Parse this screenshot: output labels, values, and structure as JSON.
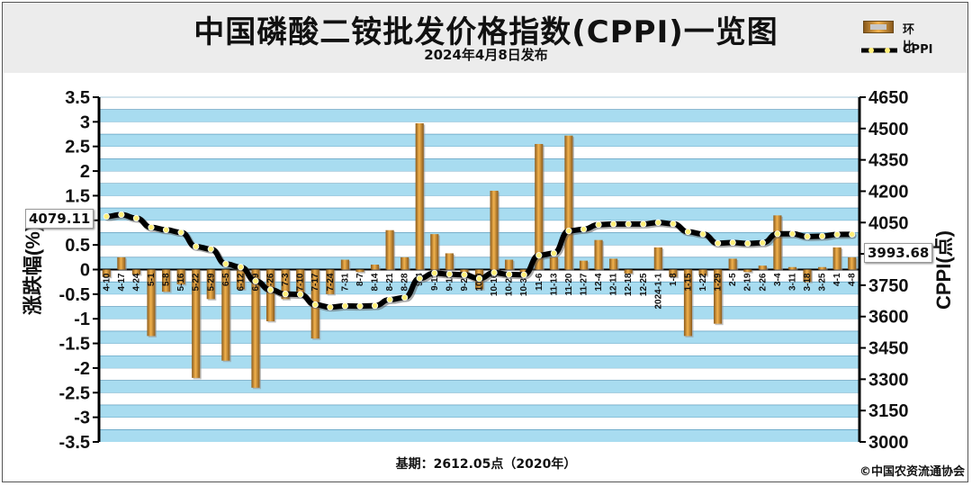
{
  "header": {
    "title": "中国磷酸二铵批发价格指数(CPPI)一览图",
    "subtitle": "2024年4月8日发布"
  },
  "legend": {
    "bar_label": "环比",
    "line_label": "CPPI"
  },
  "callouts": {
    "start_value": "4079.11",
    "end_value": "3993.68"
  },
  "footer": {
    "base_note": "基期：2612.05点（2020年）",
    "copyright": "©中国农资流通协会"
  },
  "colors": {
    "bar_light": "#f2b24d",
    "bar_dark": "#8a5a1c",
    "line": "#000000",
    "point": "#ffef7a",
    "band": "#a8dcf0",
    "gridline": "#4c8fb3"
  },
  "chart_data": {
    "type": "bar",
    "title": "中国磷酸二铵批发价格指数(CPPI)一览图",
    "subtitle": "2024年4月8日发布",
    "ylabel_left": "涨跌幅(%)",
    "ylabel_right": "CPPI(点)",
    "ylim_left": [
      -3.5,
      3.5
    ],
    "ylim_right": [
      3000,
      4650
    ],
    "yticks_left": [
      "3.5",
      "3",
      "2.5",
      "2",
      "1.5",
      "1",
      "0.5",
      "0",
      "-0.5",
      "-1",
      "-1.5",
      "-2",
      "-2.5",
      "-3",
      "-3.5"
    ],
    "yticks_right": [
      "4650",
      "4500",
      "4350",
      "4200",
      "4050",
      "3900",
      "3750",
      "3600",
      "3450",
      "3300",
      "3150",
      "3000"
    ],
    "categories": [
      "4-10",
      "4-17",
      "4-24",
      "5-1",
      "5-8",
      "5-16",
      "5-22",
      "5-29",
      "6-5",
      "6-12",
      "6-19",
      "6-26",
      "7-3",
      "7-10",
      "7-17",
      "7-24",
      "7-31",
      "8-7",
      "8-14",
      "8-21",
      "8-28",
      "9-4",
      "9-11",
      "9-18",
      "9-25",
      "10-9",
      "10-16",
      "10-23",
      "10-30",
      "11-6",
      "11-13",
      "11-20",
      "11-27",
      "12-4",
      "12-11",
      "12-18",
      "12-25",
      "2024-1-1",
      "1-8",
      "1-15",
      "1-22",
      "1-29",
      "2-5",
      "2-19",
      "2-26",
      "3-4",
      "3-11",
      "3-18",
      "3-25",
      "4-1",
      "4-8"
    ],
    "series": [
      {
        "name": "环比",
        "type": "bar",
        "axis": "left",
        "values": [
          -0.15,
          0.25,
          -0.1,
          -1.35,
          -0.45,
          -0.3,
          -2.2,
          -0.6,
          -1.85,
          -0.4,
          -2.4,
          -1.05,
          -0.6,
          -0.55,
          -1.4,
          -0.5,
          0.2,
          -0.05,
          0.1,
          0.8,
          0.25,
          2.97,
          0.72,
          0.33,
          -0.12,
          -0.4,
          1.6,
          0.2,
          -0.05,
          2.55,
          0.25,
          2.72,
          0.18,
          0.6,
          0.22,
          -0.08,
          0.0,
          0.45,
          -0.15,
          -1.35,
          -0.12,
          -1.1,
          0.22,
          -0.05,
          0.08,
          1.1,
          0.05,
          -0.25,
          0.05,
          0.45,
          0.25
        ]
      },
      {
        "name": "CPPI",
        "type": "line",
        "axis": "right",
        "values": [
          4079.11,
          4088,
          4071,
          4027,
          4015,
          4003,
          3935,
          3923,
          3852,
          3837,
          3770,
          3728,
          3708,
          3706,
          3657,
          3645,
          3651,
          3650,
          3652,
          3681,
          3691,
          3783,
          3808,
          3803,
          3800,
          3782,
          3810,
          3802,
          3800,
          3893,
          3903,
          4010,
          4018,
          4040,
          4043,
          4043,
          4043,
          4050,
          4044,
          4006,
          3995,
          3951,
          3954,
          3950,
          3953,
          3996,
          3996,
          3983,
          3985,
          3993,
          3993.68
        ]
      }
    ],
    "grid": true
  }
}
